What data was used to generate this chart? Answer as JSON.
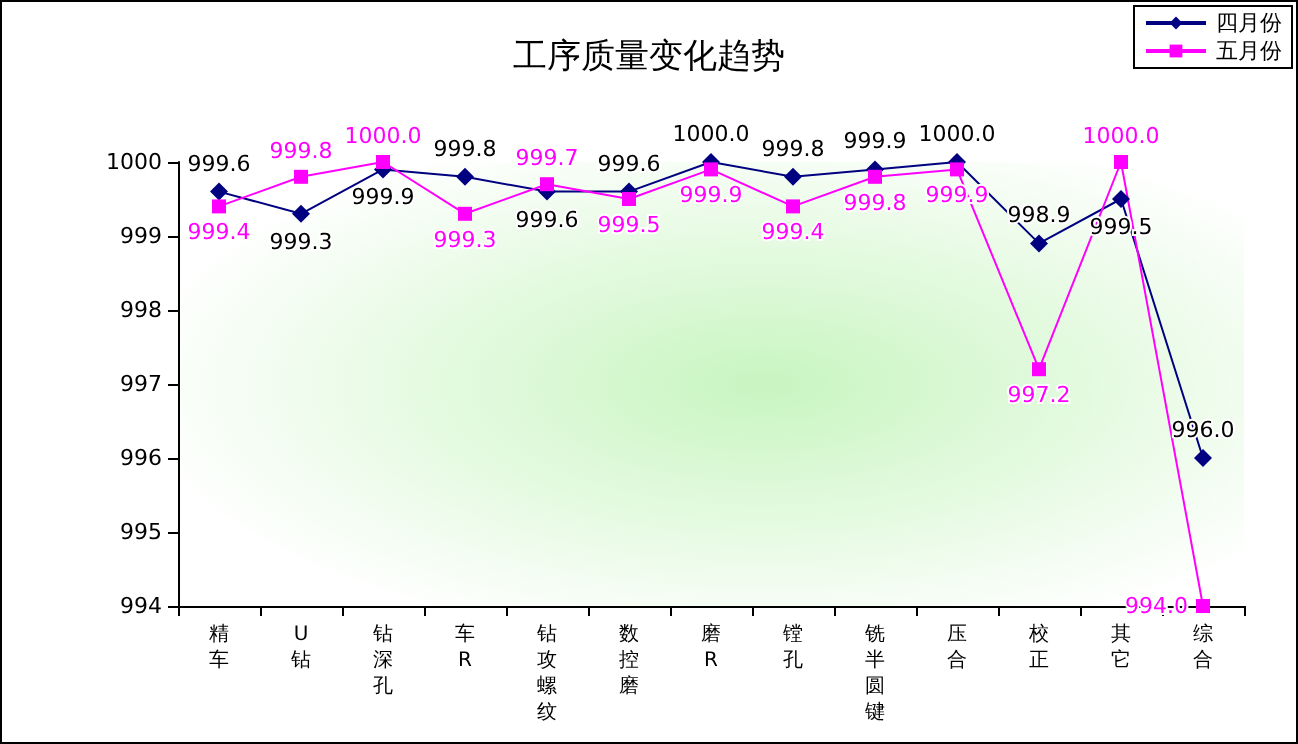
{
  "chart_data": {
    "type": "line",
    "title": "工序质量变化趋势",
    "categories": [
      "精车",
      "U钻",
      "钻深孔",
      "车R",
      "钻攻螺纹",
      "数控磨",
      "磨R",
      "镗孔",
      "铣半圆键",
      "压合",
      "校正",
      "其它",
      "综合"
    ],
    "series": [
      {
        "name": "四月份",
        "color": "#000080",
        "marker": "diamond",
        "values": [
          999.6,
          999.3,
          999.9,
          999.8,
          999.6,
          999.6,
          1000.0,
          999.8,
          999.9,
          1000.0,
          998.9,
          999.5,
          996.0
        ],
        "value_labels": [
          "999.6",
          "999.3",
          "999.9",
          "999.8",
          "999.6",
          "999.6",
          "1000.0",
          "999.8",
          "999.9",
          "1000.0",
          "998.9",
          "999.5",
          "996.0"
        ]
      },
      {
        "name": "五月份",
        "color": "#ff00ff",
        "marker": "square",
        "values": [
          999.4,
          999.8,
          1000.0,
          999.3,
          999.7,
          999.5,
          999.9,
          999.4,
          999.8,
          999.9,
          997.2,
          1000.0,
          994.0
        ],
        "value_labels": [
          "999.4",
          "999.8",
          "1000.0",
          "999.3",
          "999.7",
          "999.5",
          "999.9",
          "999.4",
          "999.8",
          "999.9",
          "997.2",
          "1000.0",
          "994.0"
        ]
      }
    ],
    "ylim": [
      994,
      1000
    ],
    "yticks": [
      994,
      995,
      996,
      997,
      998,
      999,
      1000
    ],
    "grid": false,
    "legend": "top right"
  }
}
